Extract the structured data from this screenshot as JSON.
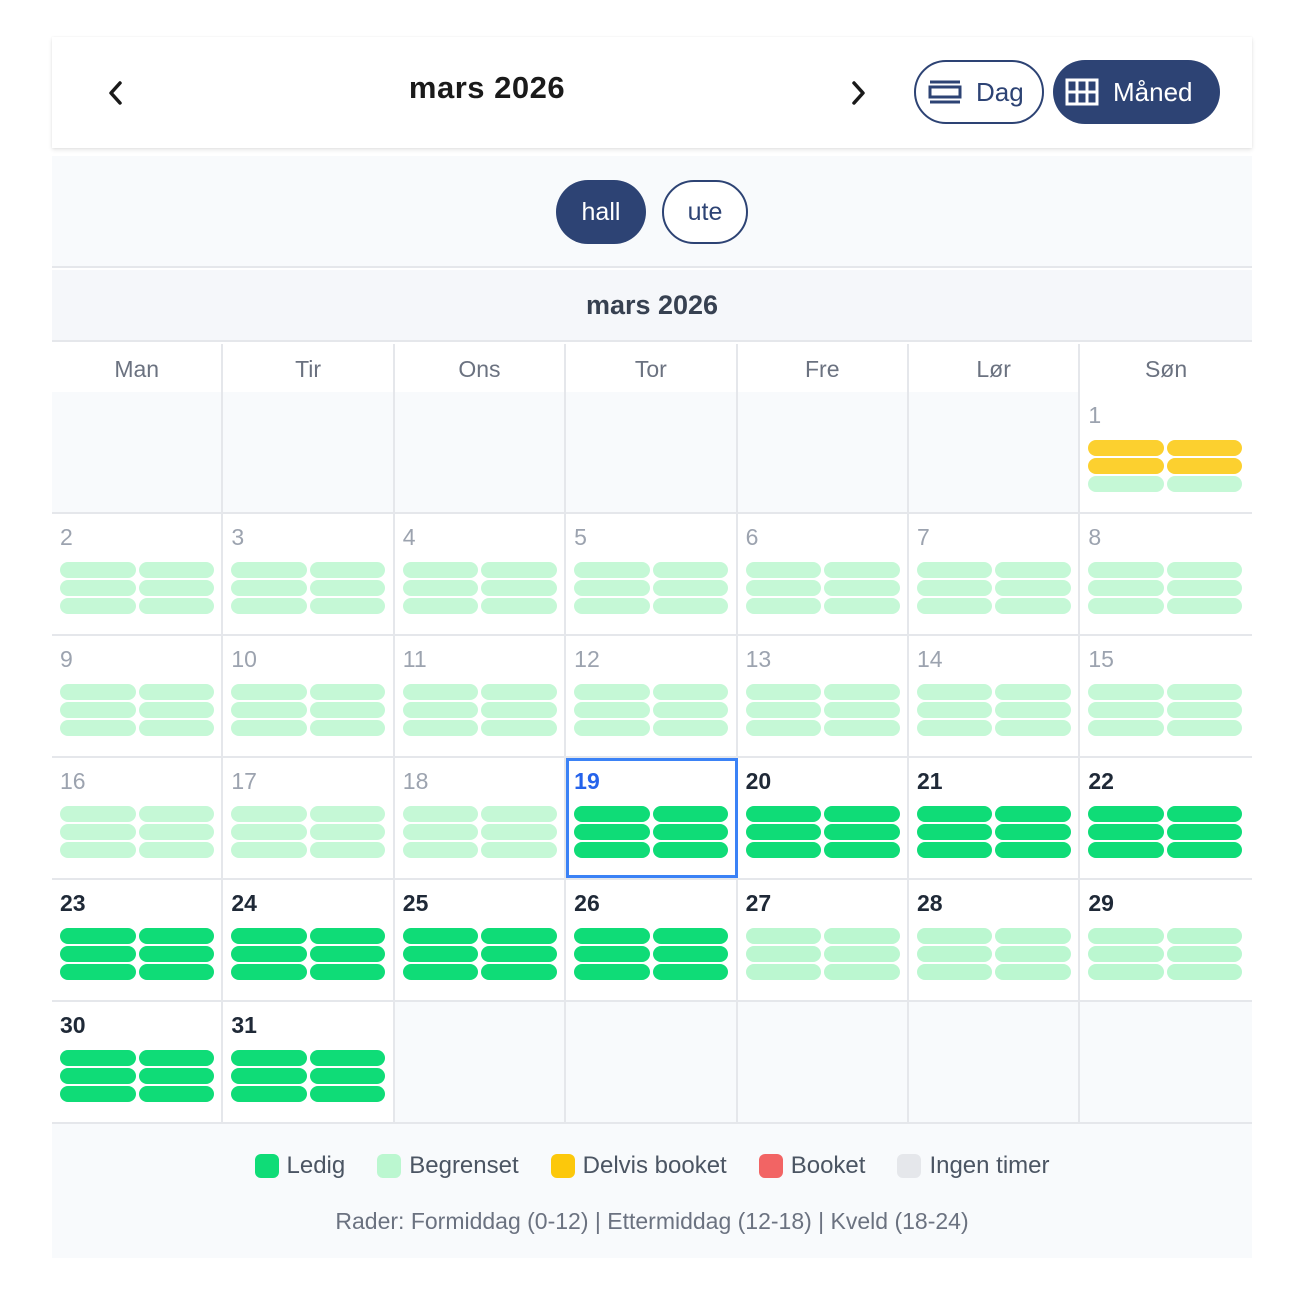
{
  "header": {
    "title": "mars 2026",
    "view_day_label": "Dag",
    "view_month_label": "Måned"
  },
  "filters": {
    "hall_label": "hall",
    "ute_label": "ute"
  },
  "calendar": {
    "month_title": "mars 2026",
    "weekdays": [
      "Man",
      "Tir",
      "Ons",
      "Tor",
      "Fre",
      "Lør",
      "Søn"
    ],
    "today": 19,
    "weeks": [
      [
        null,
        null,
        null,
        null,
        null,
        null,
        {
          "day": "1",
          "slots": [
            "delvis",
            "delvis",
            "delvis",
            "delvis",
            "begrenset",
            "begrenset"
          ]
        }
      ],
      [
        {
          "day": "2",
          "slots": [
            "begrenset",
            "begrenset",
            "begrenset",
            "begrenset",
            "begrenset",
            "begrenset"
          ]
        },
        {
          "day": "3",
          "slots": [
            "begrenset",
            "begrenset",
            "begrenset",
            "begrenset",
            "begrenset",
            "begrenset"
          ]
        },
        {
          "day": "4",
          "slots": [
            "begrenset",
            "begrenset",
            "begrenset",
            "begrenset",
            "begrenset",
            "begrenset"
          ]
        },
        {
          "day": "5",
          "slots": [
            "begrenset",
            "begrenset",
            "begrenset",
            "begrenset",
            "begrenset",
            "begrenset"
          ]
        },
        {
          "day": "6",
          "slots": [
            "begrenset",
            "begrenset",
            "begrenset",
            "begrenset",
            "begrenset",
            "begrenset"
          ]
        },
        {
          "day": "7",
          "slots": [
            "begrenset",
            "begrenset",
            "begrenset",
            "begrenset",
            "begrenset",
            "begrenset"
          ]
        },
        {
          "day": "8",
          "slots": [
            "begrenset",
            "begrenset",
            "begrenset",
            "begrenset",
            "begrenset",
            "begrenset"
          ]
        }
      ],
      [
        {
          "day": "9",
          "slots": [
            "begrenset",
            "begrenset",
            "begrenset",
            "begrenset",
            "begrenset",
            "begrenset"
          ]
        },
        {
          "day": "10",
          "slots": [
            "begrenset",
            "begrenset",
            "begrenset",
            "begrenset",
            "begrenset",
            "begrenset"
          ]
        },
        {
          "day": "11",
          "slots": [
            "begrenset",
            "begrenset",
            "begrenset",
            "begrenset",
            "begrenset",
            "begrenset"
          ]
        },
        {
          "day": "12",
          "slots": [
            "begrenset",
            "begrenset",
            "begrenset",
            "begrenset",
            "begrenset",
            "begrenset"
          ]
        },
        {
          "day": "13",
          "slots": [
            "begrenset",
            "begrenset",
            "begrenset",
            "begrenset",
            "begrenset",
            "begrenset"
          ]
        },
        {
          "day": "14",
          "slots": [
            "begrenset",
            "begrenset",
            "begrenset",
            "begrenset",
            "begrenset",
            "begrenset"
          ]
        },
        {
          "day": "15",
          "slots": [
            "begrenset",
            "begrenset",
            "begrenset",
            "begrenset",
            "begrenset",
            "begrenset"
          ]
        }
      ],
      [
        {
          "day": "16",
          "slots": [
            "begrenset",
            "begrenset",
            "begrenset",
            "begrenset",
            "begrenset",
            "begrenset"
          ]
        },
        {
          "day": "17",
          "slots": [
            "begrenset",
            "begrenset",
            "begrenset",
            "begrenset",
            "begrenset",
            "begrenset"
          ]
        },
        {
          "day": "18",
          "slots": [
            "begrenset",
            "begrenset",
            "begrenset",
            "begrenset",
            "begrenset",
            "begrenset"
          ]
        },
        {
          "day": "19",
          "slots": [
            "ledig",
            "ledig",
            "ledig",
            "ledig",
            "ledig",
            "ledig"
          ]
        },
        {
          "day": "20",
          "slots": [
            "ledig",
            "ledig",
            "ledig",
            "ledig",
            "ledig",
            "ledig"
          ]
        },
        {
          "day": "21",
          "slots": [
            "ledig",
            "ledig",
            "ledig",
            "ledig",
            "ledig",
            "ledig"
          ]
        },
        {
          "day": "22",
          "slots": [
            "ledig",
            "ledig",
            "ledig",
            "ledig",
            "ledig",
            "ledig"
          ]
        }
      ],
      [
        {
          "day": "23",
          "slots": [
            "ledig",
            "ledig",
            "ledig",
            "ledig",
            "ledig",
            "ledig"
          ]
        },
        {
          "day": "24",
          "slots": [
            "ledig",
            "ledig",
            "ledig",
            "ledig",
            "ledig",
            "ledig"
          ]
        },
        {
          "day": "25",
          "slots": [
            "ledig",
            "ledig",
            "ledig",
            "ledig",
            "ledig",
            "ledig"
          ]
        },
        {
          "day": "26",
          "slots": [
            "ledig",
            "ledig",
            "ledig",
            "ledig",
            "ledig",
            "ledig"
          ]
        },
        {
          "day": "27",
          "slots": [
            "begrenset",
            "begrenset",
            "begrenset",
            "begrenset",
            "begrenset",
            "begrenset"
          ]
        },
        {
          "day": "28",
          "slots": [
            "begrenset",
            "begrenset",
            "begrenset",
            "begrenset",
            "begrenset",
            "begrenset"
          ]
        },
        {
          "day": "29",
          "slots": [
            "begrenset",
            "begrenset",
            "begrenset",
            "begrenset",
            "begrenset",
            "begrenset"
          ]
        }
      ],
      [
        {
          "day": "30",
          "slots": [
            "ledig",
            "ledig",
            "ledig",
            "ledig",
            "ledig",
            "ledig"
          ]
        },
        {
          "day": "31",
          "slots": [
            "ledig",
            "ledig",
            "ledig",
            "ledig",
            "ledig",
            "ledig"
          ]
        },
        null,
        null,
        null,
        null,
        null
      ]
    ]
  },
  "colors": {
    "ledig": "#0fdc77",
    "begrenset": "#bbf7d0",
    "delvis": "#fcc80b",
    "booket": "#f26464",
    "ingen": "#e5e7eb",
    "accent": "#2d4374",
    "today_outline": "#3b82f6"
  },
  "legend": {
    "items": [
      {
        "key": "ledig",
        "label": "Ledig"
      },
      {
        "key": "begrenset",
        "label": "Begrenset"
      },
      {
        "key": "delvis",
        "label": "Delvis booket"
      },
      {
        "key": "booket",
        "label": "Booket"
      },
      {
        "key": "ingen",
        "label": "Ingen timer"
      }
    ],
    "note": "Rader: Formiddag (0-12) | Ettermiddag (12-18) | Kveld (18-24)"
  }
}
